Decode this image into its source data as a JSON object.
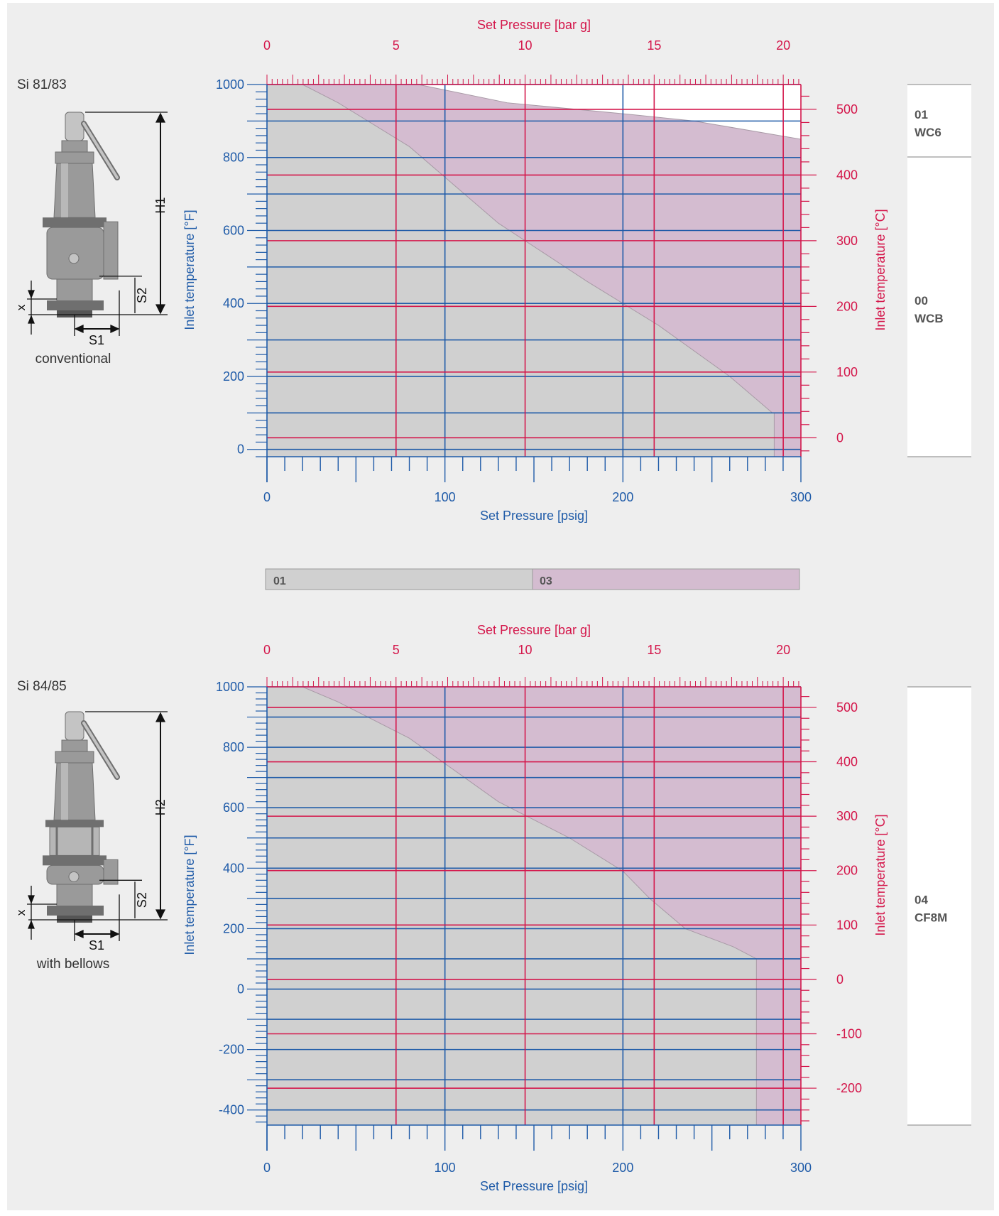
{
  "colors": {
    "blue": "#1f5ba8",
    "red": "#d4174b",
    "region_01": "#d0d0d0",
    "region_03": "#d4bcd0",
    "background": "#eeeeee",
    "text": "#333333"
  },
  "legend": {
    "items": [
      "01",
      "03"
    ]
  },
  "chart_data": [
    {
      "type": "area",
      "valve_label": "Si 81/83",
      "valve_caption": "conventional",
      "diagram_labels": {
        "height": "H1",
        "x": "x",
        "s1": "S1",
        "s2": "S2"
      },
      "top_axis_label": "Set Pressure [bar g]",
      "top_ticks": [
        "0",
        "5",
        "10",
        "15",
        "20"
      ],
      "bottom_axis_label": "Set Pressure [psig]",
      "bottom_ticks": [
        "0",
        "100",
        "200",
        "300"
      ],
      "left_axis_label": "Inlet temperature [°F]",
      "left_ticks": [
        "0",
        "200",
        "400",
        "600",
        "800",
        "1000"
      ],
      "right_axis_label": "Inlet temperature [°C]",
      "right_ticks": [
        "0",
        "100",
        "200",
        "300",
        "400",
        "500"
      ],
      "xlim_psig": [
        0,
        300
      ],
      "ylim_F": [
        -20,
        1000
      ],
      "grid": true,
      "series": [
        {
          "name": "01",
          "x": [
            0,
            20,
            40,
            80,
            130,
            180,
            200,
            220,
            260,
            284,
            285,
            285
          ],
          "y": [
            1000,
            1000,
            950,
            830,
            620,
            460,
            400,
            340,
            200,
            100,
            100,
            -20
          ]
        },
        {
          "name": "03",
          "x": [
            0,
            85,
            135,
            200,
            240,
            300,
            300
          ],
          "y": [
            1000,
            1000,
            950,
            920,
            900,
            850,
            -20
          ]
        }
      ],
      "material_bands": [
        {
          "code": "01",
          "material": "WC6"
        },
        {
          "code": "00",
          "material": "WCB"
        }
      ]
    },
    {
      "type": "area",
      "valve_label": "Si 84/85",
      "valve_caption": "with bellows",
      "diagram_labels": {
        "height": "H2",
        "x": "x",
        "s1": "S1",
        "s2": "S2"
      },
      "top_axis_label": "Set Pressure [bar g]",
      "top_ticks": [
        "0",
        "5",
        "10",
        "15",
        "20"
      ],
      "bottom_axis_label": "Set Pressure [psig]",
      "bottom_ticks": [
        "0",
        "100",
        "200",
        "300"
      ],
      "left_axis_label": "Inlet temperature [°F]",
      "left_ticks": [
        "-400",
        "-200",
        "0",
        "200",
        "400",
        "600",
        "800",
        "1000"
      ],
      "right_axis_label": "Inlet temperature [°C]",
      "right_ticks": [
        "-200",
        "-100",
        "0",
        "100",
        "200",
        "300",
        "400",
        "500"
      ],
      "xlim_psig": [
        0,
        300
      ],
      "ylim_F": [
        -450,
        1000
      ],
      "grid": true,
      "series": [
        {
          "name": "01",
          "x": [
            0,
            20,
            40,
            80,
            130,
            170,
            200,
            215,
            235,
            262,
            275,
            275
          ],
          "y": [
            1000,
            1000,
            950,
            830,
            620,
            500,
            390,
            300,
            200,
            140,
            100,
            -450
          ]
        },
        {
          "name": "03",
          "x": [
            0,
            300,
            300
          ],
          "y": [
            1000,
            1000,
            -450
          ]
        }
      ],
      "material_bands": [
        {
          "code": "04",
          "material": "CF8M"
        }
      ]
    }
  ]
}
